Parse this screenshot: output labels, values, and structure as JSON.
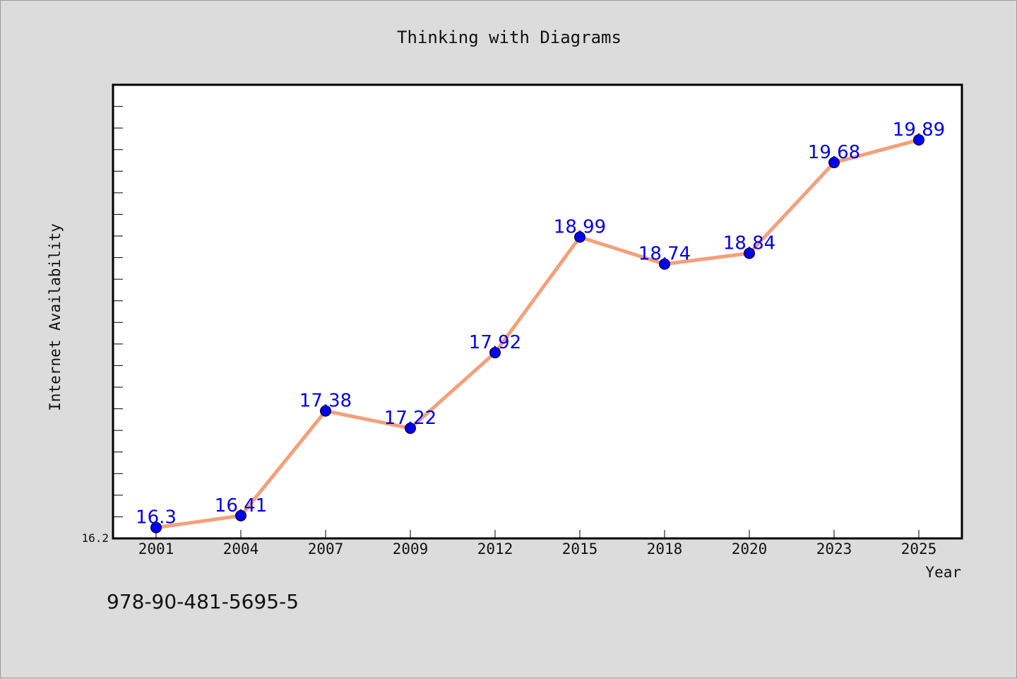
{
  "chart_data": {
    "type": "line",
    "title": "Thinking with Diagrams",
    "xlabel": "Year",
    "ylabel": "Internet Availability",
    "categories": [
      "2001",
      "2004",
      "2007",
      "2009",
      "2012",
      "2015",
      "2018",
      "2020",
      "2023",
      "2025"
    ],
    "series": [
      {
        "values": [
          16.3,
          16.41,
          17.38,
          17.22,
          17.92,
          18.99,
          18.74,
          18.84,
          19.68,
          19.89
        ],
        "labels": [
          "16.3",
          "16.41",
          "17.38",
          "17.22",
          "17.92",
          "18.99",
          "18.74",
          "18.84",
          "19.68",
          "19.89"
        ]
      }
    ],
    "ylim": [
      16.2,
      20.4
    ],
    "ytick_labels": [
      "16.2"
    ],
    "grid": false,
    "legend": "none",
    "colors": {
      "line": "#f4a07a",
      "marker": "#0000ee",
      "label": "#0000ee",
      "background": "#dcdcdc",
      "plot_bg": "#ffffff"
    }
  },
  "footnote": "978-90-481-5695-5"
}
